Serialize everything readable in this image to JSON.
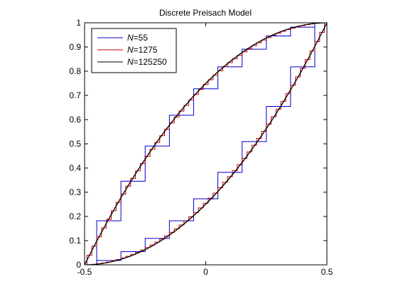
{
  "chart_data": {
    "type": "line",
    "title": "Discrete Preisach Model",
    "xlabel": "",
    "ylabel": "",
    "xlim": [
      -0.5,
      0.5
    ],
    "ylim": [
      0,
      1
    ],
    "x_ticks": [
      "-0.5",
      "0",
      "0.5"
    ],
    "y_ticks": [
      "0",
      "0.1",
      "0.2",
      "0.3",
      "0.4",
      "0.5",
      "0.6",
      "0.7",
      "0.8",
      "0.9",
      "1"
    ],
    "grid": false,
    "legend_position": "top-left",
    "series": [
      {
        "name": "N=55",
        "legend_var": "N",
        "legend_value": "=55",
        "color": "#0000cc",
        "steps": 10,
        "x_start": -0.5,
        "y_start": 0,
        "loops": [
          {
            "to": 0.5
          },
          {
            "to": -0.5
          },
          {
            "to": 0.0
          },
          {
            "to": 0.5
          },
          {
            "to": 0.1
          }
        ]
      },
      {
        "name": "N=1275",
        "legend_var": "N",
        "legend_value": "=1275",
        "color": "#cc0000",
        "steps": 50,
        "x_start": -0.5,
        "y_start": 0,
        "loops": [
          {
            "to": 0.5
          },
          {
            "to": -0.5
          },
          {
            "to": 0.0
          },
          {
            "to": 0.5
          },
          {
            "to": 0.1
          }
        ]
      },
      {
        "name": "N=125250",
        "legend_var": "N",
        "legend_value": "=125250",
        "color": "#000000",
        "steps": 500,
        "x_start": -0.5,
        "y_start": 0,
        "loops": [
          {
            "to": 0.5
          },
          {
            "to": -0.5
          },
          {
            "to": 0.0
          },
          {
            "to": 0.5
          },
          {
            "to": 0.1
          }
        ]
      }
    ]
  }
}
